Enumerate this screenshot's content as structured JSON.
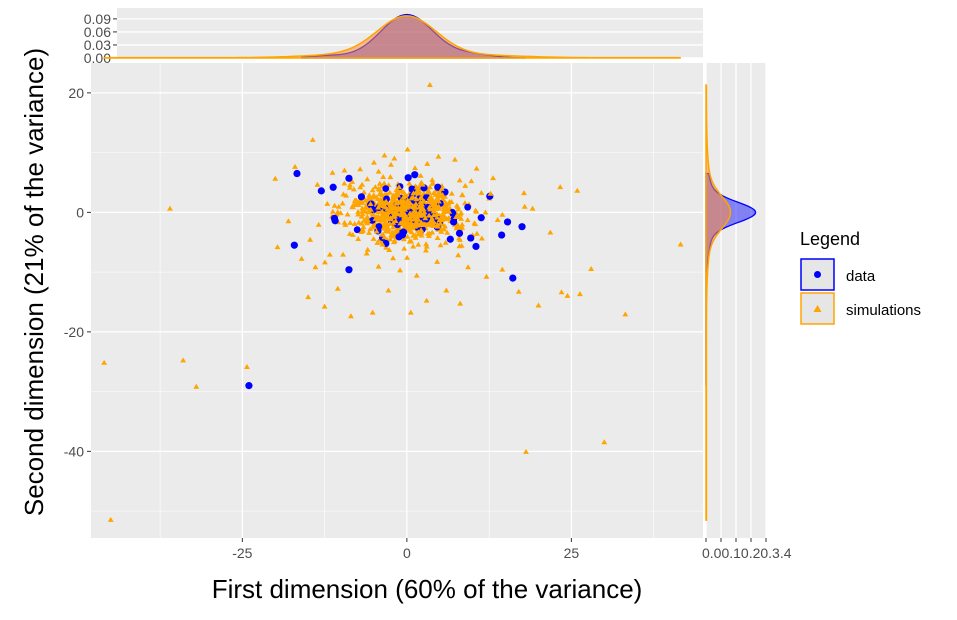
{
  "chart_data": {
    "type": "scatter",
    "xlabel": "First dimension (60% of the variance)",
    "ylabel": "Second dimension (21% of the variance)",
    "xlim": [
      -48,
      45
    ],
    "ylim": [
      -54.5,
      25
    ],
    "x_ticks": [
      -25,
      0,
      25
    ],
    "x_tick_labels": [
      "-25",
      "0",
      "25"
    ],
    "y_ticks": [
      20,
      0,
      -20,
      -40
    ],
    "y_tick_labels": [
      "20",
      "0",
      "-20",
      "-40"
    ],
    "grid": true,
    "legend": {
      "title": "Legend",
      "placement": "right",
      "entries": [
        {
          "label": "data",
          "color": "#0000FF",
          "shape": "circle"
        },
        {
          "label": "simulations",
          "color": "#FFA500",
          "shape": "triangle"
        }
      ]
    },
    "series": [
      {
        "name": "data",
        "color": "#0000FF",
        "shape": "circle",
        "points": [
          [
            -16.7,
            6.5
          ],
          [
            -17.1,
            -5.5
          ],
          [
            -13,
            3.6
          ],
          [
            -11,
            -1
          ],
          [
            -11.2,
            4.2
          ],
          [
            -8.8,
            5.7
          ],
          [
            -10.9,
            -1.4
          ],
          [
            -8.8,
            -9.6
          ],
          [
            -6.9,
            2.6
          ],
          [
            -5.5,
            1.3
          ],
          [
            -4.4,
            -3.1
          ],
          [
            -3.2,
            -5.2
          ],
          [
            -2.3,
            -1.5
          ],
          [
            -1.2,
            -4.1
          ],
          [
            0.8,
            3.9
          ],
          [
            1.2,
            6.3
          ],
          [
            2.6,
            4.1
          ],
          [
            1.8,
            -1
          ],
          [
            3,
            2.5
          ],
          [
            -0.5,
            -3.3
          ],
          [
            -1.5,
            1.2
          ],
          [
            0.2,
            5.8
          ],
          [
            4.7,
            4.2
          ],
          [
            6.6,
            -4.5
          ],
          [
            5.8,
            3.4
          ],
          [
            7.1,
            -1.6
          ],
          [
            8,
            -3.5
          ],
          [
            9.7,
            -4.3
          ],
          [
            10.5,
            -5.7
          ],
          [
            12.6,
            2.7
          ],
          [
            11.3,
            -0.9
          ],
          [
            15.3,
            -1.6
          ],
          [
            14.4,
            -3.8
          ],
          [
            17.5,
            -2.4
          ],
          [
            16.1,
            -11
          ],
          [
            -24,
            -29
          ]
        ]
      },
      {
        "name": "simulations",
        "color": "#FFA500",
        "shape": "triangle",
        "points": [
          [
            -46,
            -25.2
          ],
          [
            -34,
            -24.8
          ],
          [
            -32,
            -29.2
          ],
          [
            -24.3,
            -25.9
          ],
          [
            -45,
            -51.5
          ],
          [
            -36,
            0.6
          ],
          [
            -20,
            5.6
          ],
          [
            -17,
            7.6
          ],
          [
            -14.3,
            12.1
          ],
          [
            -13.6,
            4.6
          ],
          [
            -18,
            -1.5
          ],
          [
            -16,
            -7.8
          ],
          [
            -15,
            -14.2
          ],
          [
            -12.5,
            -15.8
          ],
          [
            -10.5,
            -12.8
          ],
          [
            -9.7,
            -7.1
          ],
          [
            -8.5,
            -17.4
          ],
          [
            -5.2,
            -16.8
          ],
          [
            -2.8,
            -13.1
          ],
          [
            0.6,
            -16.8
          ],
          [
            3,
            -14.8
          ],
          [
            6,
            -13.1
          ],
          [
            8.1,
            -15.3
          ],
          [
            12.1,
            -10.8
          ],
          [
            14.5,
            -9.6
          ],
          [
            17,
            -13.3
          ],
          [
            20,
            -15.6
          ],
          [
            23.5,
            -13.4
          ],
          [
            24.4,
            -14
          ],
          [
            26.3,
            -13.7
          ],
          [
            28,
            -9.5
          ],
          [
            33.2,
            -17.1
          ],
          [
            21.8,
            -3.4
          ],
          [
            23.3,
            4.2
          ],
          [
            25.9,
            3.6
          ],
          [
            41.6,
            -5.4
          ],
          [
            3.5,
            21.3
          ],
          [
            0.1,
            10.5
          ],
          [
            -3.4,
            9.5
          ],
          [
            4.8,
            9.3
          ],
          [
            7.3,
            8.8
          ],
          [
            10.6,
            7.3
          ],
          [
            13.1,
            5.7
          ],
          [
            17.8,
            3.2
          ],
          [
            19.1,
            0.6
          ],
          [
            -5,
            8.3
          ],
          [
            -7.1,
            7.2
          ],
          [
            -1.9,
            9
          ],
          [
            3.1,
            8.1
          ],
          [
            -11.3,
            6.6
          ],
          [
            -9.5,
            4.8
          ],
          [
            -12.1,
            1.4
          ],
          [
            -13.4,
            -2.1
          ],
          [
            -14.7,
            -4.6
          ],
          [
            -13.9,
            -9.2
          ],
          [
            -11.7,
            -7.1
          ],
          [
            -8.2,
            -3.8
          ],
          [
            -6.1,
            -6.9
          ],
          [
            -4.3,
            -9.1
          ],
          [
            -2.1,
            -7.7
          ],
          [
            1.5,
            -10.6
          ],
          [
            4.6,
            -8.3
          ],
          [
            7.8,
            -7.2
          ],
          [
            9.3,
            -9.2
          ],
          [
            11.4,
            -4.4
          ],
          [
            13.8,
            -1.3
          ],
          [
            12.7,
            3.1
          ],
          [
            9.8,
            5.2
          ],
          [
            30,
            -38.5
          ],
          [
            18.1,
            -40.1
          ],
          [
            -6.8,
            4.6
          ],
          [
            -3.6,
            5.9
          ],
          [
            2.1,
            6.1
          ],
          [
            5.3,
            3.9
          ],
          [
            7.6,
            1.1
          ],
          [
            8.4,
            -2.6
          ],
          [
            5.9,
            -5.1
          ],
          [
            2.9,
            -6.4
          ],
          [
            -0.4,
            -6.1
          ],
          [
            -3.7,
            -5.4
          ],
          [
            -6.9,
            -3.3
          ],
          [
            -8.3,
            0.9
          ],
          [
            -4.1,
            3.1
          ],
          [
            -1.2,
            4.2
          ],
          [
            1.9,
            3.5
          ],
          [
            4.4,
            1.8
          ],
          [
            5.1,
            -1.9
          ],
          [
            3.2,
            -3.6
          ],
          [
            0.1,
            -4.1
          ],
          [
            -2.8,
            -2.9
          ]
        ]
      }
    ],
    "marginal_top": {
      "y_ticks": [
        0.0,
        0.03,
        0.06,
        0.09
      ],
      "y_tick_labels": [
        "0.00",
        "0.03",
        "0.06",
        "0.09"
      ],
      "ylim": [
        0,
        0.115
      ]
    },
    "marginal_right": {
      "x_ticks": [
        0.0,
        0.1,
        0.2,
        0.3,
        0.4
      ],
      "x_tick_labels": [
        "0.0",
        "0.1",
        "0.2",
        "0.3",
        "0.4"
      ],
      "xlim": [
        0,
        0.4
      ]
    },
    "colors": {
      "data": "#0000FF",
      "simulations": "#FFA500",
      "overlap_fill": "#A97E73",
      "panel_bg": "#EBEBEB",
      "grid": "#FFFFFF"
    }
  }
}
